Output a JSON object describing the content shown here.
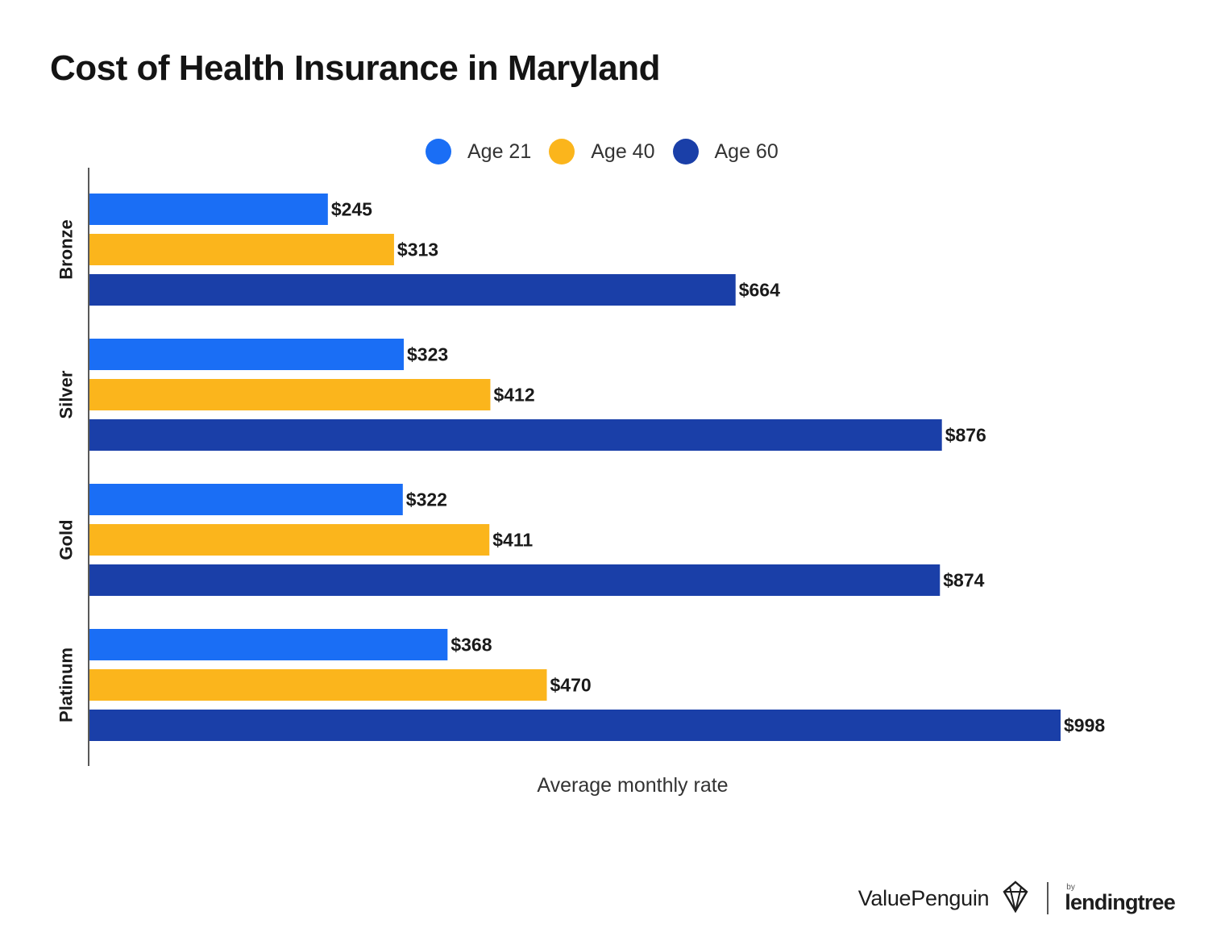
{
  "chart_data": {
    "type": "bar",
    "orientation": "horizontal",
    "title": "Cost of Health Insurance in Maryland",
    "xlabel": "Average monthly rate",
    "ylabel": "",
    "categories": [
      "Bronze",
      "Silver",
      "Gold",
      "Platinum"
    ],
    "series": [
      {
        "name": "Age 21",
        "color": "#1a6ef5",
        "values": [
          245,
          323,
          322,
          368
        ],
        "labels": [
          "$245",
          "$323",
          "$322",
          "$368"
        ]
      },
      {
        "name": "Age 40",
        "color": "#fbb51c",
        "values": [
          313,
          412,
          411,
          470
        ],
        "labels": [
          "$313",
          "$412",
          "$411",
          "$470"
        ]
      },
      {
        "name": "Age 60",
        "color": "#1a3fa8",
        "values": [
          664,
          876,
          874,
          998
        ],
        "labels": [
          "$664",
          "$876",
          "$874",
          "$998"
        ]
      }
    ],
    "xlim": [
      0,
      1000
    ],
    "grid": false,
    "legend_position": "top-center"
  },
  "footer": {
    "brand": "ValuePenguin",
    "partner_by": "by",
    "partner": "lendingtree"
  }
}
